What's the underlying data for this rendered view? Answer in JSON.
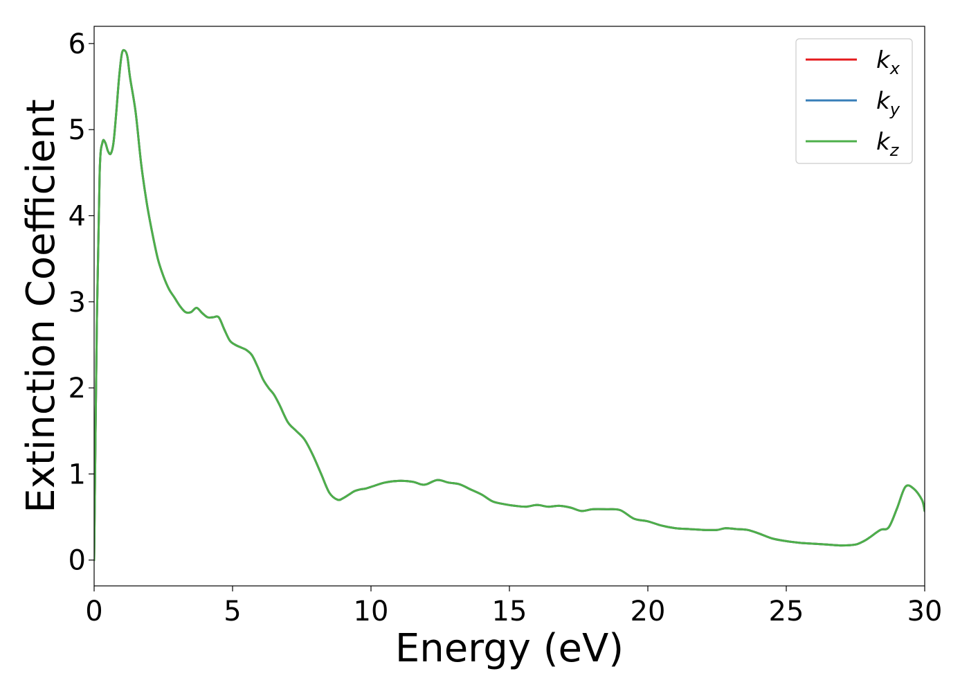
{
  "chart_data": {
    "type": "line",
    "title": "",
    "xlabel": "Energy (eV)",
    "ylabel": "Extinction Coefficient",
    "xlim": [
      0,
      30
    ],
    "ylim": [
      -0.3,
      6.2
    ],
    "xticks": [
      0,
      5,
      10,
      15,
      20,
      25,
      30
    ],
    "xtick_labels": [
      "0",
      "5",
      "10",
      "15",
      "20",
      "25",
      "30"
    ],
    "yticks": [
      0,
      1,
      2,
      3,
      4,
      5,
      6
    ],
    "ytick_labels": [
      "0",
      "1",
      "2",
      "3",
      "4",
      "5",
      "6"
    ],
    "grid": false,
    "legend_position": "top-right",
    "x": [
      0,
      0.1,
      0.2,
      0.3,
      0.4,
      0.5,
      0.6,
      0.7,
      0.8,
      0.9,
      1.0,
      1.1,
      1.2,
      1.3,
      1.5,
      1.7,
      1.9,
      2.1,
      2.3,
      2.5,
      2.7,
      2.9,
      3.1,
      3.3,
      3.5,
      3.7,
      3.9,
      4.1,
      4.3,
      4.5,
      4.7,
      4.9,
      5.1,
      5.3,
      5.5,
      5.7,
      5.9,
      6.1,
      6.3,
      6.5,
      6.7,
      7.0,
      7.3,
      7.6,
      7.9,
      8.2,
      8.5,
      8.8,
      9.0,
      9.2,
      9.4,
      9.6,
      9.8,
      10.0,
      10.5,
      11.0,
      11.5,
      11.8,
      12.0,
      12.4,
      12.8,
      13.2,
      13.6,
      14.0,
      14.4,
      14.8,
      15.2,
      15.6,
      16.0,
      16.4,
      16.8,
      17.2,
      17.6,
      18.0,
      18.5,
      19.0,
      19.5,
      20.0,
      20.5,
      21.0,
      21.5,
      22.0,
      22.5,
      22.8,
      23.2,
      23.6,
      24.0,
      24.5,
      25.0,
      25.5,
      26.0,
      26.5,
      27.0,
      27.5,
      27.8,
      28.0,
      28.4,
      28.7,
      29.0,
      29.3,
      29.6,
      29.9,
      30.0
    ],
    "series": [
      {
        "name": "k_x",
        "color": "#e41a1c",
        "values": [
          0.0,
          2.8,
          4.5,
          4.85,
          4.85,
          4.75,
          4.72,
          4.85,
          5.2,
          5.6,
          5.88,
          5.92,
          5.85,
          5.6,
          5.2,
          4.6,
          4.15,
          3.8,
          3.5,
          3.3,
          3.15,
          3.05,
          2.95,
          2.88,
          2.88,
          2.93,
          2.87,
          2.82,
          2.82,
          2.82,
          2.68,
          2.55,
          2.5,
          2.47,
          2.44,
          2.38,
          2.25,
          2.1,
          2.0,
          1.92,
          1.8,
          1.6,
          1.5,
          1.4,
          1.22,
          1.0,
          0.78,
          0.7,
          0.72,
          0.76,
          0.8,
          0.82,
          0.83,
          0.85,
          0.9,
          0.92,
          0.91,
          0.88,
          0.88,
          0.93,
          0.9,
          0.88,
          0.82,
          0.76,
          0.68,
          0.65,
          0.63,
          0.62,
          0.64,
          0.62,
          0.63,
          0.61,
          0.57,
          0.59,
          0.59,
          0.58,
          0.48,
          0.45,
          0.4,
          0.37,
          0.36,
          0.35,
          0.35,
          0.37,
          0.36,
          0.35,
          0.31,
          0.25,
          0.22,
          0.2,
          0.19,
          0.18,
          0.17,
          0.18,
          0.22,
          0.26,
          0.35,
          0.38,
          0.6,
          0.85,
          0.83,
          0.7,
          0.57
        ]
      },
      {
        "name": "k_y",
        "color": "#377eb8",
        "values": [
          0.0,
          2.8,
          4.5,
          4.85,
          4.85,
          4.75,
          4.72,
          4.85,
          5.2,
          5.6,
          5.88,
          5.92,
          5.85,
          5.6,
          5.2,
          4.6,
          4.15,
          3.8,
          3.5,
          3.3,
          3.15,
          3.05,
          2.95,
          2.88,
          2.88,
          2.93,
          2.87,
          2.82,
          2.82,
          2.82,
          2.68,
          2.55,
          2.5,
          2.47,
          2.44,
          2.38,
          2.25,
          2.1,
          2.0,
          1.92,
          1.8,
          1.6,
          1.5,
          1.4,
          1.22,
          1.0,
          0.78,
          0.7,
          0.72,
          0.76,
          0.8,
          0.82,
          0.83,
          0.85,
          0.9,
          0.92,
          0.91,
          0.88,
          0.88,
          0.93,
          0.9,
          0.88,
          0.82,
          0.76,
          0.68,
          0.65,
          0.63,
          0.62,
          0.64,
          0.62,
          0.63,
          0.61,
          0.57,
          0.59,
          0.59,
          0.58,
          0.48,
          0.45,
          0.4,
          0.37,
          0.36,
          0.35,
          0.35,
          0.37,
          0.36,
          0.35,
          0.31,
          0.25,
          0.22,
          0.2,
          0.19,
          0.18,
          0.17,
          0.18,
          0.22,
          0.26,
          0.35,
          0.38,
          0.6,
          0.85,
          0.83,
          0.7,
          0.57
        ]
      },
      {
        "name": "k_z",
        "color": "#4daf4a",
        "values": [
          0.0,
          2.8,
          4.5,
          4.85,
          4.85,
          4.75,
          4.72,
          4.85,
          5.2,
          5.6,
          5.88,
          5.92,
          5.85,
          5.6,
          5.2,
          4.6,
          4.15,
          3.8,
          3.5,
          3.3,
          3.15,
          3.05,
          2.95,
          2.88,
          2.88,
          2.93,
          2.87,
          2.82,
          2.82,
          2.82,
          2.68,
          2.55,
          2.5,
          2.47,
          2.44,
          2.38,
          2.25,
          2.1,
          2.0,
          1.92,
          1.8,
          1.6,
          1.5,
          1.4,
          1.22,
          1.0,
          0.78,
          0.7,
          0.72,
          0.76,
          0.8,
          0.82,
          0.83,
          0.85,
          0.9,
          0.92,
          0.91,
          0.88,
          0.88,
          0.93,
          0.9,
          0.88,
          0.82,
          0.76,
          0.68,
          0.65,
          0.63,
          0.62,
          0.64,
          0.62,
          0.63,
          0.61,
          0.57,
          0.59,
          0.59,
          0.58,
          0.48,
          0.45,
          0.4,
          0.37,
          0.36,
          0.35,
          0.35,
          0.37,
          0.36,
          0.35,
          0.31,
          0.25,
          0.22,
          0.2,
          0.19,
          0.18,
          0.17,
          0.18,
          0.22,
          0.26,
          0.35,
          0.38,
          0.6,
          0.85,
          0.83,
          0.7,
          0.57
        ]
      }
    ],
    "legend": [
      {
        "base": "k",
        "sub": "x",
        "color": "#e41a1c"
      },
      {
        "base": "k",
        "sub": "y",
        "color": "#377eb8"
      },
      {
        "base": "k",
        "sub": "z",
        "color": "#4daf4a"
      }
    ]
  }
}
